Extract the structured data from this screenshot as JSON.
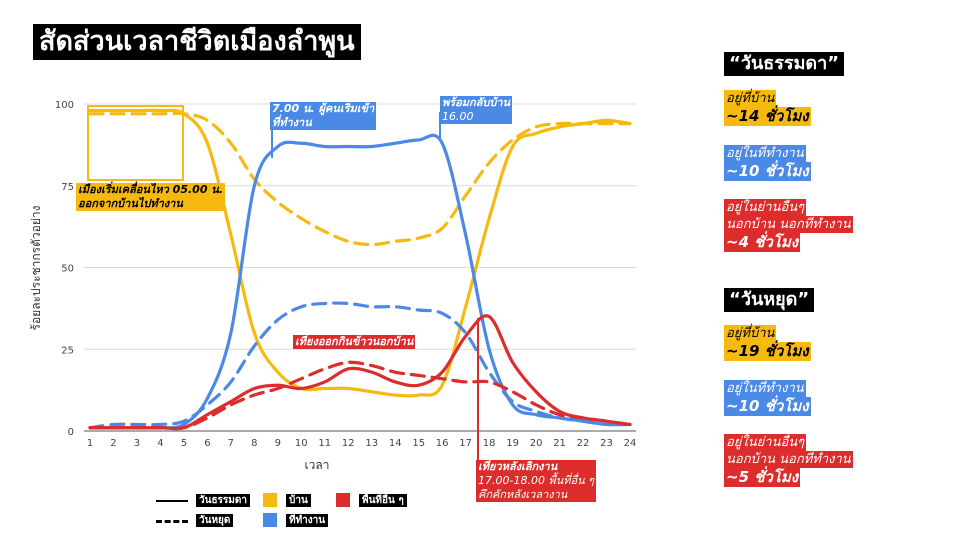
{
  "title": "สัดส่วนเวลาชีวิตเมืองลำพูน",
  "chart_data": {
    "type": "line",
    "x": [
      1,
      2,
      3,
      4,
      5,
      6,
      7,
      8,
      9,
      10,
      11,
      12,
      13,
      14,
      15,
      16,
      17,
      18,
      19,
      20,
      21,
      22,
      23,
      24
    ],
    "xlabel": "เวลา",
    "ylabel": "ร้อยละประชากรตัวอย่าง",
    "ylim": [
      0,
      100
    ],
    "yticks": [
      0,
      25,
      50,
      75,
      100
    ],
    "series": [
      {
        "category": "บ้าน",
        "daytype": "วันธรรมดา",
        "color": "#f6b910",
        "dash": false,
        "values": [
          98,
          98,
          98,
          98,
          97,
          88,
          60,
          30,
          18,
          13,
          13,
          13,
          12,
          11,
          11,
          14,
          38,
          65,
          87,
          91,
          93,
          94,
          95,
          94
        ]
      },
      {
        "category": "บ้าน",
        "daytype": "วันหยุด",
        "color": "#f6b910",
        "dash": true,
        "values": [
          97,
          97,
          97,
          97,
          97,
          95,
          88,
          77,
          70,
          65,
          61,
          58,
          57,
          58,
          59,
          62,
          72,
          82,
          89,
          93,
          94,
          94,
          94,
          94
        ]
      },
      {
        "category": "ที่ทำงาน",
        "daytype": "วันธรรมดา",
        "color": "#4b89e6",
        "dash": false,
        "values": [
          1,
          1,
          1,
          1,
          2,
          10,
          30,
          75,
          87,
          88,
          87,
          87,
          87,
          88,
          89,
          88,
          60,
          25,
          8,
          5,
          4,
          3,
          2,
          2
        ]
      },
      {
        "category": "ที่ทำงาน",
        "daytype": "วันหยุด",
        "color": "#4b89e6",
        "dash": true,
        "values": [
          1,
          2,
          2,
          2,
          3,
          8,
          15,
          26,
          34,
          38,
          39,
          39,
          38,
          38,
          37,
          36,
          30,
          18,
          9,
          6,
          4,
          3,
          2,
          2
        ]
      },
      {
        "category": "พื้นที่อื่น ๆ",
        "daytype": "วันธรรมดา",
        "color": "#dc2c2c",
        "dash": false,
        "values": [
          1,
          1,
          1,
          1,
          1,
          5,
          9,
          13,
          14,
          13,
          15,
          19,
          18,
          15,
          14,
          18,
          29,
          35,
          21,
          12,
          6,
          4,
          3,
          2
        ]
      },
      {
        "category": "พื้นที่อื่น ๆ",
        "daytype": "วันหยุด",
        "color": "#dc2c2c",
        "dash": true,
        "values": [
          1,
          1,
          1,
          1,
          1,
          4,
          8,
          11,
          13,
          16,
          19,
          21,
          20,
          18,
          17,
          16,
          15,
          15,
          12,
          8,
          5,
          4,
          3,
          2
        ]
      }
    ],
    "annotations": [
      {
        "lines": [
          "เมืองเริ่มเคลื่อนไหว 05.00 น.",
          "ออกจากบ้านไปทำงาน"
        ]
      },
      {
        "lines": [
          "7.00 น. ผู้คนเริ่มเข้า",
          "ที่ทำงาน"
        ]
      },
      {
        "lines": [
          "พร้อมกลับบ้าน",
          "16.00"
        ]
      },
      {
        "lines": [
          "เที่ยงออกกินข้าวนอกบ้าน"
        ]
      },
      {
        "lines": [
          "เที่ยวหลังเลิกงาน",
          "17.00-18.00 พื้นที่อื่น ๆ",
          "คึกคักหลังเวลางาน"
        ]
      }
    ],
    "legend": {
      "line_styles": [
        "วันธรรมดา",
        "วันหยุด"
      ],
      "categories": [
        "บ้าน",
        "ที่ทำงาน",
        "พื้นที่อื่น ๆ"
      ]
    }
  },
  "summary": {
    "weekday": {
      "heading": "“วันธรรมดา”",
      "items": [
        {
          "where": [
            "อยู่ที่บ้าน"
          ],
          "hours": "~14 ชั่วโมง"
        },
        {
          "where": [
            "อยู่ในที่ทำงาน"
          ],
          "hours": "~10 ชั่วโมง"
        },
        {
          "where": [
            "อยู่ในย่านอื่นๆ",
            "นอกบ้าน นอกที่ทำงาน"
          ],
          "hours": "~4 ชั่วโมง"
        }
      ]
    },
    "holiday": {
      "heading": "“วันหยุด”",
      "items": [
        {
          "where": [
            "อยู่ที่บ้าน"
          ],
          "hours": "~19 ชั่วโมง"
        },
        {
          "where": [
            "อยู่ในที่ทำงาน"
          ],
          "hours": "~10 ชั่วโมง"
        },
        {
          "where": [
            "อยู่ในย่านอื่นๆ",
            "นอกบ้าน นอกที่ทำงาน"
          ],
          "hours": "~5 ชั่วโมง"
        }
      ]
    }
  }
}
